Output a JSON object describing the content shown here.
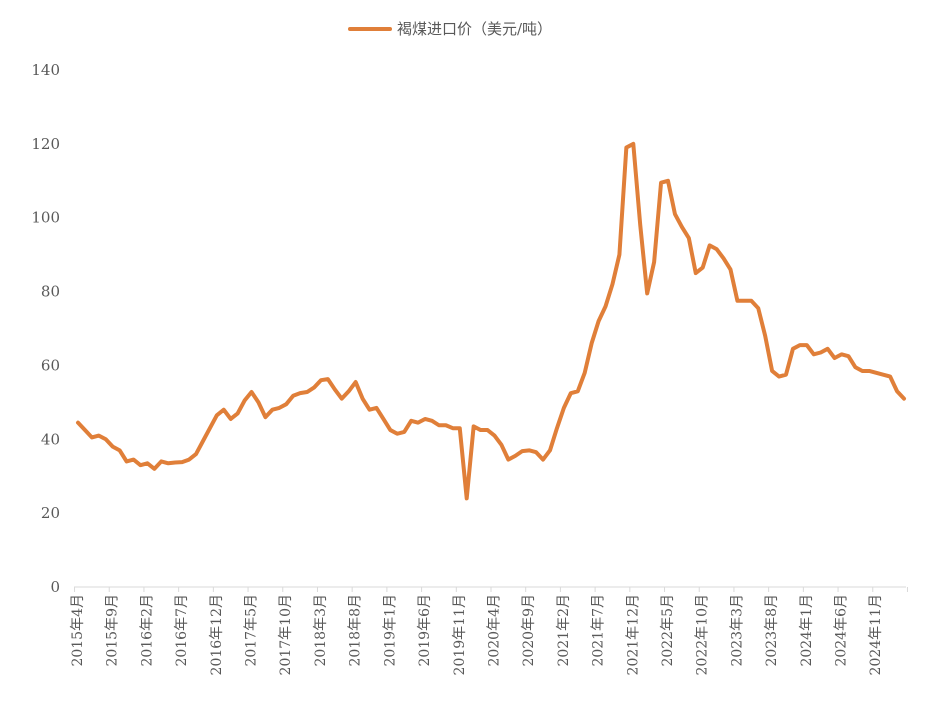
{
  "chart_data": {
    "type": "line",
    "legend": "top",
    "grid": false,
    "ylim": [
      0,
      140
    ],
    "yticks": [
      0,
      20,
      40,
      60,
      80,
      100,
      120,
      140
    ],
    "x_tick_labels": [
      "2015年4月",
      "2015年9月",
      "2016年2月",
      "2016年7月",
      "2016年12月",
      "2017年5月",
      "2017年10月",
      "2018年3月",
      "2018年8月",
      "2019年1月",
      "2019年6月",
      "2019年11月",
      "2020年4月",
      "2020年9月",
      "2021年2月",
      "2021年7月",
      "2021年12月",
      "2022年5月",
      "2022年10月",
      "2023年3月",
      "2023年8月",
      "2024年1月",
      "2024年6月",
      "2024年11月"
    ],
    "x_start": "2015-04",
    "x_step": "month",
    "series": [
      {
        "name": "褐煤进口价（美元/吨）",
        "color": "#E07F39",
        "values": [
          44.5,
          42.5,
          40.5,
          41.0,
          40.0,
          38.0,
          37.0,
          34.0,
          34.5,
          33.0,
          33.5,
          32.0,
          34.0,
          33.5,
          33.7,
          33.8,
          34.5,
          36.0,
          39.5,
          43.0,
          46.5,
          48.0,
          45.5,
          47.0,
          50.5,
          52.8,
          50.0,
          46.0,
          48.0,
          48.5,
          49.5,
          51.8,
          52.5,
          52.8,
          54.0,
          56.0,
          56.3,
          53.5,
          51.0,
          53.0,
          55.5,
          51.0,
          48.0,
          48.5,
          45.5,
          42.5,
          41.5,
          42.0,
          45.0,
          44.5,
          45.5,
          45.0,
          43.8,
          43.8,
          43.0,
          43.0,
          24.0,
          43.5,
          42.5,
          42.5,
          41.0,
          38.5,
          34.5,
          35.5,
          36.8,
          37.0,
          36.5,
          34.5,
          37.0,
          43.0,
          48.5,
          52.5,
          53.0,
          58.0,
          66.0,
          72.0,
          76.0,
          82.0,
          90.0,
          119.0,
          120.0,
          98.0,
          79.5,
          88.0,
          109.5,
          110.0,
          101.0,
          97.5,
          94.5,
          85.0,
          86.5,
          92.5,
          91.5,
          89.0,
          86.0,
          77.5,
          77.5,
          77.5,
          75.5,
          68.0,
          58.5,
          57.0,
          57.5,
          64.5,
          65.5,
          65.5,
          63.0,
          63.5,
          64.5,
          62.0,
          63.0,
          62.5,
          59.5,
          58.5,
          58.5,
          58.0,
          57.5,
          57.0,
          53.0,
          51.0
        ]
      }
    ]
  }
}
